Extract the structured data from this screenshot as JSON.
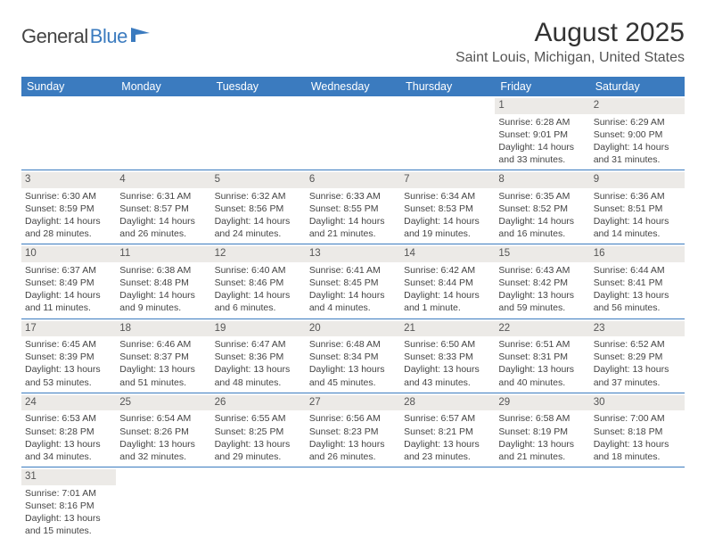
{
  "logo": {
    "part1": "General",
    "part2": "Blue"
  },
  "title": "August 2025",
  "location": "Saint Louis, Michigan, United States",
  "colors": {
    "header_bg": "#3b7bbf",
    "header_text": "#ffffff",
    "daynum_bg": "#eceae7",
    "border": "#3b7bbf",
    "body_text": "#444444",
    "logo_blue": "#3b7bbf"
  },
  "day_headers": [
    "Sunday",
    "Monday",
    "Tuesday",
    "Wednesday",
    "Thursday",
    "Friday",
    "Saturday"
  ],
  "weeks": [
    [
      null,
      null,
      null,
      null,
      null,
      {
        "n": "1",
        "sunrise": "Sunrise: 6:28 AM",
        "sunset": "Sunset: 9:01 PM",
        "d1": "Daylight: 14 hours",
        "d2": "and 33 minutes."
      },
      {
        "n": "2",
        "sunrise": "Sunrise: 6:29 AM",
        "sunset": "Sunset: 9:00 PM",
        "d1": "Daylight: 14 hours",
        "d2": "and 31 minutes."
      }
    ],
    [
      {
        "n": "3",
        "sunrise": "Sunrise: 6:30 AM",
        "sunset": "Sunset: 8:59 PM",
        "d1": "Daylight: 14 hours",
        "d2": "and 28 minutes."
      },
      {
        "n": "4",
        "sunrise": "Sunrise: 6:31 AM",
        "sunset": "Sunset: 8:57 PM",
        "d1": "Daylight: 14 hours",
        "d2": "and 26 minutes."
      },
      {
        "n": "5",
        "sunrise": "Sunrise: 6:32 AM",
        "sunset": "Sunset: 8:56 PM",
        "d1": "Daylight: 14 hours",
        "d2": "and 24 minutes."
      },
      {
        "n": "6",
        "sunrise": "Sunrise: 6:33 AM",
        "sunset": "Sunset: 8:55 PM",
        "d1": "Daylight: 14 hours",
        "d2": "and 21 minutes."
      },
      {
        "n": "7",
        "sunrise": "Sunrise: 6:34 AM",
        "sunset": "Sunset: 8:53 PM",
        "d1": "Daylight: 14 hours",
        "d2": "and 19 minutes."
      },
      {
        "n": "8",
        "sunrise": "Sunrise: 6:35 AM",
        "sunset": "Sunset: 8:52 PM",
        "d1": "Daylight: 14 hours",
        "d2": "and 16 minutes."
      },
      {
        "n": "9",
        "sunrise": "Sunrise: 6:36 AM",
        "sunset": "Sunset: 8:51 PM",
        "d1": "Daylight: 14 hours",
        "d2": "and 14 minutes."
      }
    ],
    [
      {
        "n": "10",
        "sunrise": "Sunrise: 6:37 AM",
        "sunset": "Sunset: 8:49 PM",
        "d1": "Daylight: 14 hours",
        "d2": "and 11 minutes."
      },
      {
        "n": "11",
        "sunrise": "Sunrise: 6:38 AM",
        "sunset": "Sunset: 8:48 PM",
        "d1": "Daylight: 14 hours",
        "d2": "and 9 minutes."
      },
      {
        "n": "12",
        "sunrise": "Sunrise: 6:40 AM",
        "sunset": "Sunset: 8:46 PM",
        "d1": "Daylight: 14 hours",
        "d2": "and 6 minutes."
      },
      {
        "n": "13",
        "sunrise": "Sunrise: 6:41 AM",
        "sunset": "Sunset: 8:45 PM",
        "d1": "Daylight: 14 hours",
        "d2": "and 4 minutes."
      },
      {
        "n": "14",
        "sunrise": "Sunrise: 6:42 AM",
        "sunset": "Sunset: 8:44 PM",
        "d1": "Daylight: 14 hours",
        "d2": "and 1 minute."
      },
      {
        "n": "15",
        "sunrise": "Sunrise: 6:43 AM",
        "sunset": "Sunset: 8:42 PM",
        "d1": "Daylight: 13 hours",
        "d2": "and 59 minutes."
      },
      {
        "n": "16",
        "sunrise": "Sunrise: 6:44 AM",
        "sunset": "Sunset: 8:41 PM",
        "d1": "Daylight: 13 hours",
        "d2": "and 56 minutes."
      }
    ],
    [
      {
        "n": "17",
        "sunrise": "Sunrise: 6:45 AM",
        "sunset": "Sunset: 8:39 PM",
        "d1": "Daylight: 13 hours",
        "d2": "and 53 minutes."
      },
      {
        "n": "18",
        "sunrise": "Sunrise: 6:46 AM",
        "sunset": "Sunset: 8:37 PM",
        "d1": "Daylight: 13 hours",
        "d2": "and 51 minutes."
      },
      {
        "n": "19",
        "sunrise": "Sunrise: 6:47 AM",
        "sunset": "Sunset: 8:36 PM",
        "d1": "Daylight: 13 hours",
        "d2": "and 48 minutes."
      },
      {
        "n": "20",
        "sunrise": "Sunrise: 6:48 AM",
        "sunset": "Sunset: 8:34 PM",
        "d1": "Daylight: 13 hours",
        "d2": "and 45 minutes."
      },
      {
        "n": "21",
        "sunrise": "Sunrise: 6:50 AM",
        "sunset": "Sunset: 8:33 PM",
        "d1": "Daylight: 13 hours",
        "d2": "and 43 minutes."
      },
      {
        "n": "22",
        "sunrise": "Sunrise: 6:51 AM",
        "sunset": "Sunset: 8:31 PM",
        "d1": "Daylight: 13 hours",
        "d2": "and 40 minutes."
      },
      {
        "n": "23",
        "sunrise": "Sunrise: 6:52 AM",
        "sunset": "Sunset: 8:29 PM",
        "d1": "Daylight: 13 hours",
        "d2": "and 37 minutes."
      }
    ],
    [
      {
        "n": "24",
        "sunrise": "Sunrise: 6:53 AM",
        "sunset": "Sunset: 8:28 PM",
        "d1": "Daylight: 13 hours",
        "d2": "and 34 minutes."
      },
      {
        "n": "25",
        "sunrise": "Sunrise: 6:54 AM",
        "sunset": "Sunset: 8:26 PM",
        "d1": "Daylight: 13 hours",
        "d2": "and 32 minutes."
      },
      {
        "n": "26",
        "sunrise": "Sunrise: 6:55 AM",
        "sunset": "Sunset: 8:25 PM",
        "d1": "Daylight: 13 hours",
        "d2": "and 29 minutes."
      },
      {
        "n": "27",
        "sunrise": "Sunrise: 6:56 AM",
        "sunset": "Sunset: 8:23 PM",
        "d1": "Daylight: 13 hours",
        "d2": "and 26 minutes."
      },
      {
        "n": "28",
        "sunrise": "Sunrise: 6:57 AM",
        "sunset": "Sunset: 8:21 PM",
        "d1": "Daylight: 13 hours",
        "d2": "and 23 minutes."
      },
      {
        "n": "29",
        "sunrise": "Sunrise: 6:58 AM",
        "sunset": "Sunset: 8:19 PM",
        "d1": "Daylight: 13 hours",
        "d2": "and 21 minutes."
      },
      {
        "n": "30",
        "sunrise": "Sunrise: 7:00 AM",
        "sunset": "Sunset: 8:18 PM",
        "d1": "Daylight: 13 hours",
        "d2": "and 18 minutes."
      }
    ],
    [
      {
        "n": "31",
        "sunrise": "Sunrise: 7:01 AM",
        "sunset": "Sunset: 8:16 PM",
        "d1": "Daylight: 13 hours",
        "d2": "and 15 minutes."
      },
      null,
      null,
      null,
      null,
      null,
      null
    ]
  ]
}
